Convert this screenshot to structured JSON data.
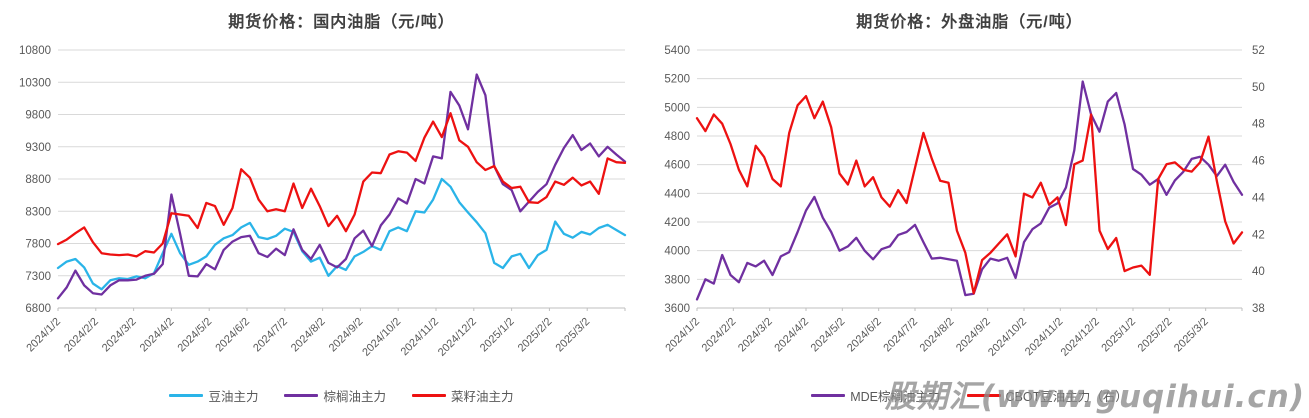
{
  "watermark": "股期汇(www.guqihui.cn)",
  "colors": {
    "soybean_oil": "#2AB4E8",
    "palm_oil": "#7030A0",
    "rapeseed_oil": "#ED1111",
    "grid": "#D9D9D9",
    "axis": "#BFBFBF",
    "tick_label": "#595959",
    "title": "#404040"
  },
  "chart_data": [
    {
      "type": "line",
      "title": "期货价格：国内油脂（元/吨）",
      "grid": true,
      "legend_position": "bottom",
      "x_tick_labels": [
        "2024/1/2",
        "2024/2/2",
        "2024/3/2",
        "2024/4/2",
        "2024/5/2",
        "2024/6/2",
        "2024/7/2",
        "2024/8/2",
        "2024/9/2",
        "2024/10/2",
        "2024/11/2",
        "2024/12/2",
        "2025/1/2",
        "2025/2/2",
        "2025/3/2"
      ],
      "y_left": {
        "min": 6800,
        "max": 10800,
        "step": 500
      },
      "series": [
        {
          "name": "豆油主力",
          "color": "#2AB4E8",
          "axis": "left",
          "values": [
            7420,
            7520,
            7560,
            7430,
            7180,
            7090,
            7230,
            7260,
            7250,
            7290,
            7260,
            7340,
            7650,
            7950,
            7650,
            7470,
            7520,
            7600,
            7780,
            7880,
            7930,
            8050,
            8120,
            7900,
            7870,
            7920,
            8030,
            7980,
            7680,
            7520,
            7580,
            7300,
            7450,
            7390,
            7600,
            7670,
            7760,
            7700,
            7990,
            8050,
            7990,
            8300,
            8280,
            8480,
            8800,
            8680,
            8440,
            8280,
            8130,
            7960,
            7500,
            7420,
            7600,
            7640,
            7420,
            7620,
            7700,
            8140,
            7950,
            7890,
            7980,
            7940,
            8040,
            8090,
            8010,
            7930
          ]
        },
        {
          "name": "棕榈油主力",
          "color": "#7030A0",
          "axis": "left",
          "values": [
            6950,
            7120,
            7380,
            7150,
            7030,
            7010,
            7150,
            7230,
            7230,
            7240,
            7300,
            7330,
            7480,
            8560,
            7950,
            7300,
            7290,
            7480,
            7400,
            7700,
            7830,
            7900,
            7920,
            7650,
            7590,
            7720,
            7620,
            8020,
            7700,
            7560,
            7780,
            7500,
            7430,
            7560,
            7880,
            8000,
            7760,
            8080,
            8250,
            8500,
            8420,
            8800,
            8730,
            9150,
            9120,
            10150,
            9940,
            9570,
            10420,
            10100,
            9000,
            8720,
            8630,
            8300,
            8450,
            8600,
            8720,
            9020,
            9280,
            9480,
            9250,
            9350,
            9150,
            9300,
            9180,
            9070
          ]
        },
        {
          "name": "菜籽油主力",
          "color": "#ED1111",
          "axis": "left",
          "values": [
            7790,
            7860,
            7960,
            8050,
            7820,
            7650,
            7630,
            7620,
            7630,
            7600,
            7680,
            7660,
            7800,
            8270,
            8250,
            8230,
            8040,
            8430,
            8380,
            8090,
            8350,
            8950,
            8820,
            8480,
            8300,
            8330,
            8300,
            8730,
            8350,
            8650,
            8380,
            8070,
            8230,
            7990,
            8250,
            8760,
            8900,
            8890,
            9180,
            9230,
            9210,
            9080,
            9440,
            9690,
            9450,
            9820,
            9400,
            9300,
            9060,
            8940,
            9000,
            8760,
            8660,
            8680,
            8440,
            8430,
            8520,
            8760,
            8710,
            8820,
            8700,
            8760,
            8570,
            9120,
            9060,
            9050
          ]
        }
      ]
    },
    {
      "type": "line",
      "title": "期货价格：外盘油脂（元/吨）",
      "grid": true,
      "legend_position": "bottom",
      "x_tick_labels": [
        "2024/1/2",
        "2024/2/2",
        "2024/3/2",
        "2024/4/2",
        "2024/5/2",
        "2024/6/2",
        "2024/7/2",
        "2024/8/2",
        "2024/9/2",
        "2024/10/2",
        "2024/11/2",
        "2024/12/2",
        "2025/1/2",
        "2025/2/2",
        "2025/3/2"
      ],
      "y_left": {
        "min": 3600,
        "max": 5400,
        "step": 200
      },
      "y_right": {
        "min": 38,
        "max": 52,
        "step": 2
      },
      "series": [
        {
          "name": "MDE棕榈油主力",
          "color": "#7030A0",
          "axis": "left",
          "values": [
            3660,
            3800,
            3770,
            3970,
            3830,
            3780,
            3915,
            3890,
            3930,
            3830,
            3960,
            3990,
            4130,
            4280,
            4375,
            4230,
            4130,
            4000,
            4030,
            4090,
            4000,
            3940,
            4010,
            4030,
            4110,
            4130,
            4180,
            4060,
            3945,
            3950,
            3940,
            3930,
            3690,
            3700,
            3870,
            3945,
            3930,
            3950,
            3810,
            4060,
            4150,
            4190,
            4300,
            4330,
            4440,
            4700,
            5180,
            4950,
            4830,
            5040,
            5100,
            4880,
            4570,
            4530,
            4460,
            4500,
            4390,
            4490,
            4550,
            4640,
            4655,
            4600,
            4520,
            4600,
            4480,
            4390
          ]
        },
        {
          "name": "CBOT豆油主力（右）",
          "color": "#ED1111",
          "axis": "right",
          "values": [
            48.3,
            47.6,
            48.5,
            48.0,
            46.9,
            45.5,
            44.6,
            46.8,
            46.2,
            45.0,
            44.6,
            47.5,
            49.0,
            49.5,
            48.3,
            49.2,
            47.8,
            45.3,
            44.7,
            46.0,
            44.6,
            45.1,
            44.0,
            43.5,
            44.4,
            43.7,
            45.6,
            47.5,
            46.1,
            44.9,
            44.8,
            42.2,
            41.0,
            38.8,
            40.6,
            41.0,
            41.5,
            42.0,
            40.8,
            44.2,
            44.0,
            44.8,
            43.6,
            44.0,
            42.5,
            45.8,
            46.0,
            48.5,
            42.2,
            41.2,
            41.8,
            40.0,
            40.2,
            40.3,
            39.8,
            45.0,
            45.8,
            45.9,
            45.5,
            45.4,
            45.9,
            47.3,
            44.9,
            42.7,
            41.5,
            42.1
          ]
        }
      ]
    }
  ]
}
